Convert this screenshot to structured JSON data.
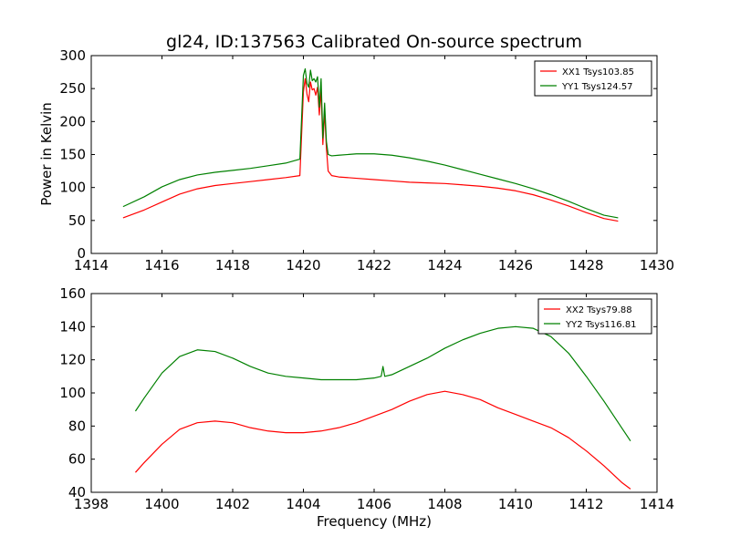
{
  "figure": {
    "title": "gl24, ID:137563 Calibrated On-source spectrum"
  },
  "chart_data": [
    {
      "type": "line",
      "title": "gl24, ID:137563 Calibrated On-source spectrum",
      "xlabel": "",
      "ylabel": "Power in Kelvin",
      "xlim": [
        1414,
        1430
      ],
      "ylim": [
        0,
        300
      ],
      "xticks": [
        1414,
        1416,
        1418,
        1420,
        1422,
        1424,
        1426,
        1428,
        1430
      ],
      "yticks": [
        0,
        50,
        100,
        150,
        200,
        250,
        300
      ],
      "legend": "top-right",
      "grid": false,
      "series": [
        {
          "name": "XX1 Tsys103.85",
          "color": "#ff0000",
          "x": [
            1414.9,
            1415.5,
            1416.0,
            1416.5,
            1417.0,
            1417.5,
            1418.0,
            1418.5,
            1419.0,
            1419.5,
            1419.9,
            1420.0,
            1420.05,
            1420.1,
            1420.15,
            1420.2,
            1420.25,
            1420.3,
            1420.35,
            1420.4,
            1420.45,
            1420.5,
            1420.55,
            1420.6,
            1420.65,
            1420.7,
            1420.8,
            1421.0,
            1421.5,
            1422.0,
            1422.5,
            1423.0,
            1423.5,
            1424.0,
            1424.5,
            1425.0,
            1425.5,
            1426.0,
            1426.5,
            1427.0,
            1427.5,
            1428.0,
            1428.5,
            1428.9
          ],
          "values": [
            54,
            66,
            78,
            90,
            98,
            103,
            106,
            109,
            112,
            115,
            118,
            245,
            265,
            242,
            230,
            260,
            248,
            250,
            240,
            252,
            210,
            248,
            165,
            215,
            160,
            125,
            118,
            116,
            114,
            112,
            110,
            108,
            107,
            106,
            104,
            102,
            99,
            95,
            89,
            81,
            72,
            62,
            53,
            49
          ]
        },
        {
          "name": "YY1 Tsys124.57",
          "color": "#008000",
          "x": [
            1414.9,
            1415.5,
            1416.0,
            1416.5,
            1417.0,
            1417.5,
            1418.0,
            1418.5,
            1419.0,
            1419.5,
            1419.9,
            1420.0,
            1420.05,
            1420.1,
            1420.15,
            1420.2,
            1420.25,
            1420.3,
            1420.35,
            1420.4,
            1420.45,
            1420.5,
            1420.55,
            1420.6,
            1420.65,
            1420.7,
            1420.8,
            1421.0,
            1421.5,
            1422.0,
            1422.5,
            1423.0,
            1423.5,
            1424.0,
            1424.5,
            1425.0,
            1425.5,
            1426.0,
            1426.5,
            1427.0,
            1427.5,
            1428.0,
            1428.5,
            1428.9
          ],
          "values": [
            71,
            86,
            101,
            112,
            119,
            123,
            126,
            129,
            133,
            137,
            143,
            270,
            280,
            258,
            252,
            278,
            262,
            265,
            260,
            268,
            222,
            265,
            175,
            228,
            170,
            150,
            148,
            149,
            151,
            151,
            149,
            145,
            140,
            134,
            127,
            120,
            113,
            106,
            98,
            89,
            79,
            68,
            58,
            54
          ]
        }
      ]
    },
    {
      "type": "line",
      "title": "",
      "xlabel": "Frequency (MHz)",
      "ylabel": "",
      "xlim": [
        1398,
        1414
      ],
      "ylim": [
        40,
        160
      ],
      "xticks": [
        1398,
        1400,
        1402,
        1404,
        1406,
        1408,
        1410,
        1412,
        1414
      ],
      "yticks": [
        40,
        60,
        80,
        100,
        120,
        140,
        160
      ],
      "legend": "top-right",
      "grid": false,
      "series": [
        {
          "name": "XX2 Tsys79.88",
          "color": "#ff0000",
          "x": [
            1399.25,
            1399.5,
            1400.0,
            1400.5,
            1401.0,
            1401.5,
            1402.0,
            1402.5,
            1403.0,
            1403.5,
            1404.0,
            1404.5,
            1405.0,
            1405.5,
            1406.0,
            1406.5,
            1407.0,
            1407.5,
            1408.0,
            1408.5,
            1409.0,
            1409.5,
            1410.0,
            1410.5,
            1411.0,
            1411.5,
            1412.0,
            1412.5,
            1413.0,
            1413.25
          ],
          "values": [
            52,
            58,
            69,
            78,
            82,
            83,
            82,
            79,
            77,
            76,
            76,
            77,
            79,
            82,
            86,
            90,
            95,
            99,
            101,
            99,
            96,
            91,
            87,
            83,
            79,
            73,
            65,
            56,
            46,
            42
          ]
        },
        {
          "name": "YY2 Tsys116.81",
          "color": "#008000",
          "x": [
            1399.25,
            1399.5,
            1400.0,
            1400.5,
            1401.0,
            1401.5,
            1402.0,
            1402.5,
            1403.0,
            1403.5,
            1404.0,
            1404.5,
            1405.0,
            1405.5,
            1406.0,
            1406.2,
            1406.25,
            1406.3,
            1406.5,
            1407.0,
            1407.5,
            1408.0,
            1408.5,
            1409.0,
            1409.5,
            1410.0,
            1410.5,
            1411.0,
            1411.5,
            1412.0,
            1412.5,
            1413.0,
            1413.25
          ],
          "values": [
            89,
            97,
            112,
            122,
            126,
            125,
            121,
            116,
            112,
            110,
            109,
            108,
            108,
            108,
            109,
            110,
            116,
            110,
            111,
            116,
            121,
            127,
            132,
            136,
            139,
            140,
            139,
            134,
            124,
            110,
            95,
            79,
            71
          ]
        }
      ]
    }
  ]
}
